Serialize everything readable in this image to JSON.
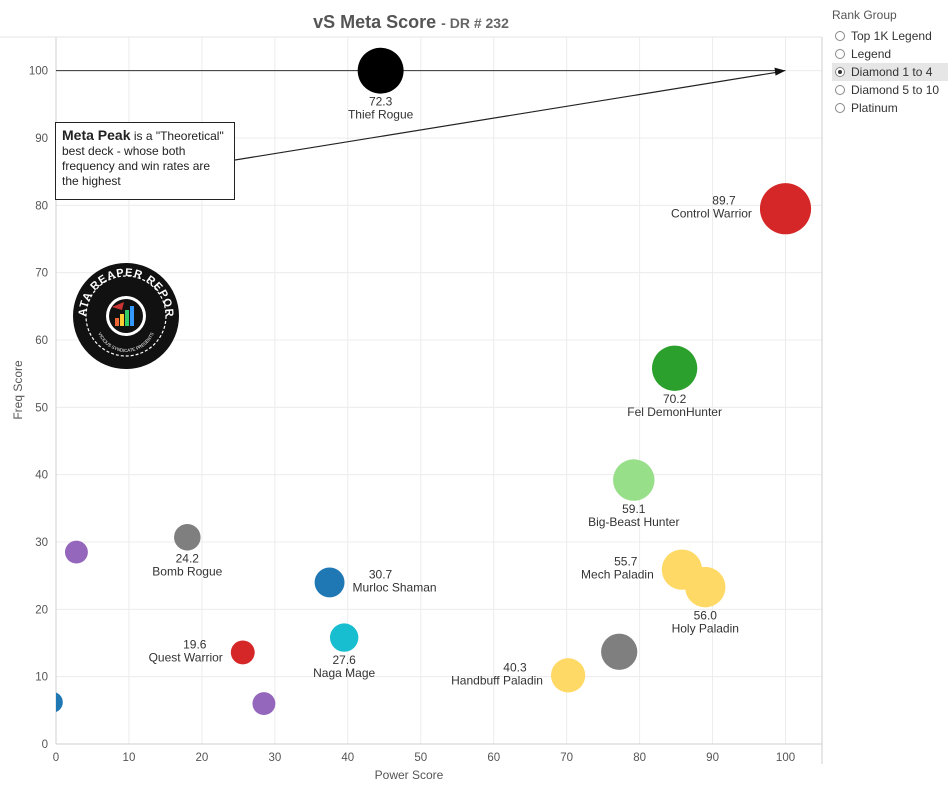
{
  "title": {
    "main": "vS Meta Score",
    "sub": "DR # 232"
  },
  "legend": {
    "title": "Rank Group",
    "items": [
      {
        "label": "Top 1K Legend",
        "selected": false
      },
      {
        "label": "Legend",
        "selected": false
      },
      {
        "label": "Diamond 1 to 4",
        "selected": true
      },
      {
        "label": "Diamond 5 to 10",
        "selected": false
      },
      {
        "label": "Platinum",
        "selected": false
      }
    ]
  },
  "annotation": {
    "bold": "Meta Peak",
    "text": " is a \"Theoretical\" best deck - whose both frequency and win rates are the highest"
  },
  "logo": {
    "text_top": "DATA REAPER REPORT",
    "text_bottom": "VICIOUS SYNDICATE PRESENTS"
  },
  "chart_data": {
    "type": "scatter",
    "xlabel": "Power Score",
    "ylabel": "Freq Score",
    "xlim": [
      0,
      105
    ],
    "ylim": [
      0,
      105
    ],
    "xticks": [
      0,
      10,
      20,
      30,
      40,
      50,
      60,
      70,
      80,
      90,
      100
    ],
    "yticks": [
      0,
      10,
      20,
      30,
      40,
      50,
      60,
      70,
      80,
      90,
      100
    ],
    "grid": true,
    "reference_line_y": 100,
    "points": [
      {
        "x": 44.5,
        "y": 100,
        "size": 72.3,
        "color": "#000000",
        "score": "72.3",
        "name": "Thief Rogue",
        "label_pos": "below"
      },
      {
        "x": 100,
        "y": 79.5,
        "size": 89.7,
        "color": "#d62728",
        "score": "89.7",
        "name": "Control Warrior",
        "label_pos": "left"
      },
      {
        "x": 84.8,
        "y": 55.8,
        "size": 70.2,
        "color": "#2ca02c",
        "score": "70.2",
        "name": "Fel DemonHunter",
        "label_pos": "below"
      },
      {
        "x": 79.2,
        "y": 39.2,
        "size": 59.1,
        "color": "#98df8a",
        "score": "59.1",
        "name": "Big-Beast Hunter",
        "label_pos": "below"
      },
      {
        "x": 85.8,
        "y": 25.9,
        "size": 55.7,
        "color": "#ffd966",
        "score": "55.7",
        "name": "Mech Paladin",
        "label_pos": "left"
      },
      {
        "x": 89,
        "y": 23.3,
        "size": 56.0,
        "color": "#ffd966",
        "score": "56.0",
        "name": "Holy Paladin",
        "label_pos": "below"
      },
      {
        "x": 70.2,
        "y": 10.2,
        "size": 40.3,
        "color": "#ffd966",
        "score": "40.3",
        "name": "Handbuff Paladin",
        "label_pos": "left"
      },
      {
        "x": 77.2,
        "y": 13.7,
        "size": 45,
        "color": "#7f7f7f",
        "score": "",
        "name": "",
        "label_pos": "none"
      },
      {
        "x": 18,
        "y": 30.7,
        "size": 24.2,
        "color": "#7f7f7f",
        "score": "24.2",
        "name": "Bomb Rogue",
        "label_pos": "below"
      },
      {
        "x": 37.5,
        "y": 24.0,
        "size": 30.7,
        "color": "#1f77b4",
        "score": "30.7",
        "name": "Murloc Shaman",
        "label_pos": "right"
      },
      {
        "x": 39.5,
        "y": 15.8,
        "size": 27.6,
        "color": "#17becf",
        "score": "27.6",
        "name": "Naga Mage",
        "label_pos": "below"
      },
      {
        "x": 25.6,
        "y": 13.6,
        "size": 19.6,
        "color": "#d62728",
        "score": "19.6",
        "name": "Quest Warrior",
        "label_pos": "left"
      },
      {
        "x": 2.8,
        "y": 28.5,
        "size": 18,
        "color": "#9467bd",
        "score": "",
        "name": "",
        "label_pos": "none"
      },
      {
        "x": 28.5,
        "y": 6.0,
        "size": 18,
        "color": "#9467bd",
        "score": "",
        "name": "",
        "label_pos": "none"
      },
      {
        "x": -0.5,
        "y": 6.2,
        "size": 15,
        "color": "#1f77b4",
        "score": "",
        "name": "",
        "label_pos": "none"
      }
    ]
  }
}
